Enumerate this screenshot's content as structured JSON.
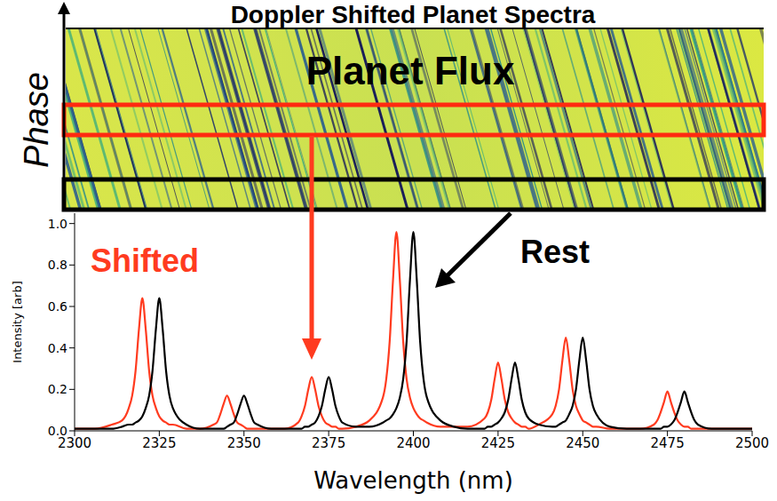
{
  "chart_data": {
    "type": "line",
    "title": "Doppler Shifted Planet Spectra",
    "x_label": "Wavelength (nm)",
    "y_label": "Intensity [arb]",
    "x": [
      2300,
      2306,
      2311,
      2314,
      2316,
      2317,
      2318,
      2319,
      2320,
      2321,
      2322,
      2323,
      2324,
      2325,
      2326,
      2327,
      2328,
      2329,
      2333,
      2337,
      2341,
      2342,
      2343,
      2344,
      2345,
      2346,
      2347,
      2348,
      2349,
      2350,
      2351,
      2352,
      2353,
      2354,
      2358,
      2362,
      2366,
      2367,
      2368,
      2369,
      2370,
      2371,
      2372,
      2373,
      2374,
      2375,
      2376,
      2377,
      2378,
      2379,
      2383,
      2387,
      2391,
      2392,
      2393,
      2394,
      2395,
      2396,
      2397,
      2398,
      2399,
      2400,
      2401,
      2402,
      2403,
      2404,
      2408,
      2412,
      2416,
      2421,
      2422,
      2423,
      2424,
      2425,
      2426,
      2427,
      2428,
      2429,
      2430,
      2431,
      2432,
      2433,
      2434,
      2437,
      2441,
      2442,
      2443,
      2444,
      2445,
      2446,
      2447,
      2448,
      2449,
      2450,
      2451,
      2452,
      2453,
      2454,
      2458,
      2463,
      2467,
      2471,
      2472,
      2473,
      2474,
      2475,
      2476,
      2477,
      2478,
      2479,
      2480,
      2481,
      2482,
      2483,
      2484,
      2488,
      2494,
      2500
    ],
    "series": [
      {
        "name": "Shifted",
        "color": "#ff3b1f",
        "values": [
          0.01,
          0.01,
          0.03,
          0.05,
          0.11,
          0.17,
          0.29,
          0.49,
          0.64,
          0.49,
          0.29,
          0.17,
          0.11,
          0.07,
          0.05,
          0.04,
          0.03,
          0.03,
          0.01,
          0.01,
          0.03,
          0.04,
          0.08,
          0.13,
          0.17,
          0.13,
          0.08,
          0.04,
          0.03,
          0.02,
          0.01,
          0.01,
          0.01,
          0.01,
          0.01,
          0.01,
          0.04,
          0.07,
          0.12,
          0.2,
          0.26,
          0.2,
          0.12,
          0.07,
          0.04,
          0.03,
          0.02,
          0.02,
          0.01,
          0.01,
          0.02,
          0.05,
          0.16,
          0.25,
          0.43,
          0.73,
          0.96,
          0.73,
          0.43,
          0.25,
          0.16,
          0.11,
          0.08,
          0.06,
          0.05,
          0.04,
          0.02,
          0.02,
          0.02,
          0.06,
          0.09,
          0.15,
          0.25,
          0.33,
          0.25,
          0.15,
          0.09,
          0.06,
          0.04,
          0.03,
          0.02,
          0.02,
          0.01,
          0.03,
          0.08,
          0.12,
          0.2,
          0.34,
          0.45,
          0.34,
          0.2,
          0.12,
          0.08,
          0.05,
          0.04,
          0.03,
          0.02,
          0.02,
          0.01,
          0.01,
          0.01,
          0.03,
          0.05,
          0.09,
          0.14,
          0.19,
          0.14,
          0.09,
          0.05,
          0.03,
          0.02,
          0.02,
          0.01,
          0.01,
          0.01,
          0.01,
          0.01,
          0.01
        ]
      },
      {
        "name": "Rest",
        "color": "#000000",
        "values": [
          0.01,
          0.01,
          0.01,
          0.02,
          0.03,
          0.03,
          0.04,
          0.05,
          0.07,
          0.11,
          0.17,
          0.29,
          0.49,
          0.64,
          0.49,
          0.29,
          0.17,
          0.11,
          0.03,
          0.01,
          0.01,
          0.01,
          0.01,
          0.01,
          0.02,
          0.03,
          0.04,
          0.08,
          0.13,
          0.17,
          0.13,
          0.08,
          0.04,
          0.03,
          0.01,
          0.01,
          0.01,
          0.01,
          0.02,
          0.02,
          0.03,
          0.04,
          0.07,
          0.12,
          0.2,
          0.26,
          0.2,
          0.12,
          0.07,
          0.04,
          0.02,
          0.02,
          0.04,
          0.05,
          0.06,
          0.08,
          0.11,
          0.16,
          0.25,
          0.43,
          0.73,
          0.96,
          0.73,
          0.43,
          0.25,
          0.16,
          0.05,
          0.02,
          0.01,
          0.01,
          0.02,
          0.02,
          0.03,
          0.04,
          0.06,
          0.09,
          0.15,
          0.25,
          0.33,
          0.25,
          0.15,
          0.09,
          0.06,
          0.03,
          0.02,
          0.02,
          0.03,
          0.04,
          0.05,
          0.08,
          0.12,
          0.2,
          0.34,
          0.45,
          0.34,
          0.2,
          0.12,
          0.08,
          0.02,
          0.01,
          0.01,
          0.01,
          0.01,
          0.01,
          0.02,
          0.02,
          0.03,
          0.05,
          0.09,
          0.14,
          0.19,
          0.14,
          0.09,
          0.05,
          0.03,
          0.01,
          0.01,
          0.01
        ]
      }
    ],
    "xlim": [
      2300,
      2500
    ],
    "xticks": [
      2300,
      2325,
      2350,
      2375,
      2400,
      2425,
      2450,
      2475,
      2500
    ],
    "ylim": [
      0,
      1.05
    ],
    "yticks": [
      {
        "value": 0,
        "label": "0.0"
      },
      0.2,
      0.4,
      0.6,
      0.8,
      {
        "value": 1,
        "label": "1.0"
      }
    ],
    "grid": false
  },
  "spectrogram": {
    "label": "Planet Flux",
    "axis_label": "Phase"
  }
}
